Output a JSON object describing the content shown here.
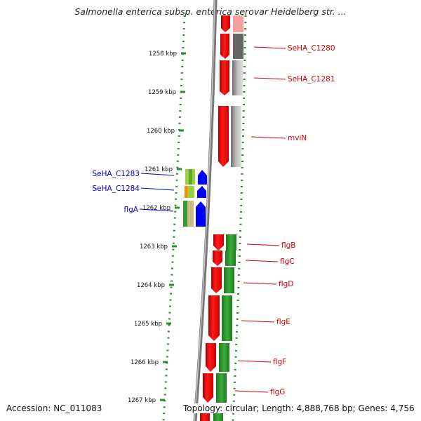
{
  "title": "Salmonella enterica subsp. enterica serovar Heidelberg str. ...",
  "footer": {
    "accession": "Accession: NC_011083",
    "stats": "Topology: circular; Length: 4,888,768 bp; Genes: 4,756"
  },
  "ruler": {
    "unit": "kbp",
    "ticks": [
      "1258 kbp",
      "1259 kbp",
      "1260 kbp",
      "1261 kbp",
      "1262 kbp",
      "1263 kbp",
      "1264 kbp",
      "1265 kbp",
      "1266 kbp",
      "1267 kbp"
    ]
  },
  "genes_left": [
    {
      "label": "SeHA_C1283",
      "color": "#0000cc"
    },
    {
      "label": "SeHA_C1284",
      "color": "#0000cc"
    },
    {
      "label": "flgA",
      "color": "#0000cc"
    }
  ],
  "genes_right": [
    {
      "label": "SeHA_C1280",
      "color": "#cc0000"
    },
    {
      "label": "SeHA_C1281",
      "color": "#cc0000"
    },
    {
      "label": "mviN",
      "color": "#cc0000"
    },
    {
      "label": "flgB",
      "color": "#cc0000"
    },
    {
      "label": "flgC",
      "color": "#cc0000"
    },
    {
      "label": "flgD",
      "color": "#cc0000"
    },
    {
      "label": "flgE",
      "color": "#cc0000"
    },
    {
      "label": "flgF",
      "color": "#cc0000"
    },
    {
      "label": "flgG",
      "color": "#cc0000"
    }
  ],
  "colors": {
    "forward_strand": "#ff0000",
    "reverse_strand": "#0000ff",
    "ruler_dots": "#2e8b2e",
    "backbone": "#888888",
    "cog_green": "#2e9e2e",
    "cog_gray": "#999999"
  }
}
